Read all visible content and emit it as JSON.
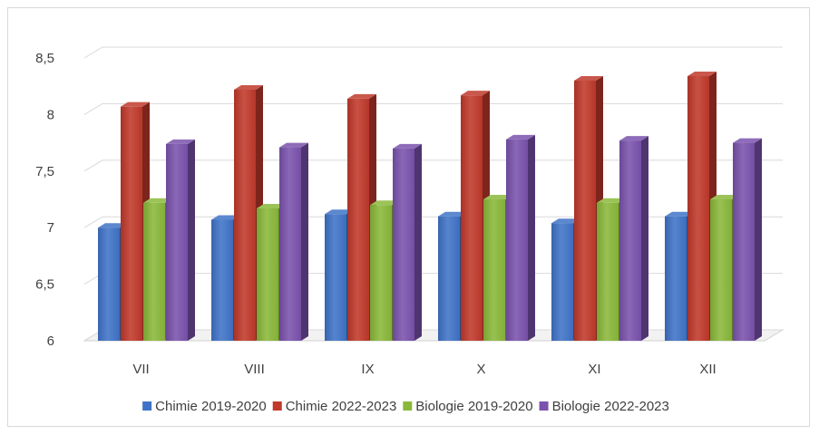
{
  "chart_data": {
    "type": "bar",
    "title": "",
    "xlabel": "",
    "ylabel": "",
    "categories": [
      "VII",
      "VIII",
      "IX",
      "X",
      "XI",
      "XII"
    ],
    "series": [
      {
        "name": "Chimie 2019-2020",
        "color": "#3f73c7",
        "values": [
          7.0,
          7.07,
          7.12,
          7.1,
          7.04,
          7.1
        ]
      },
      {
        "name": "Chimie 2022-2023",
        "color": "#c0392b",
        "values": [
          8.07,
          8.22,
          8.14,
          8.17,
          8.3,
          8.34
        ]
      },
      {
        "name": "Biologie 2019-2020",
        "color": "#8ab83a",
        "values": [
          7.22,
          7.17,
          7.2,
          7.25,
          7.22,
          7.25
        ]
      },
      {
        "name": "Biologie 2022-2023",
        "color": "#7a52ad",
        "values": [
          7.74,
          7.71,
          7.7,
          7.78,
          7.77,
          7.75
        ]
      }
    ],
    "ylim": [
      6,
      8.5
    ],
    "yticks": [
      6,
      6.5,
      7,
      7.5,
      8,
      8.5
    ],
    "ytick_labels": [
      "6",
      "6,5",
      "7",
      "7,5",
      "8",
      "8,5"
    ],
    "grid": true,
    "legend_position": "bottom"
  }
}
